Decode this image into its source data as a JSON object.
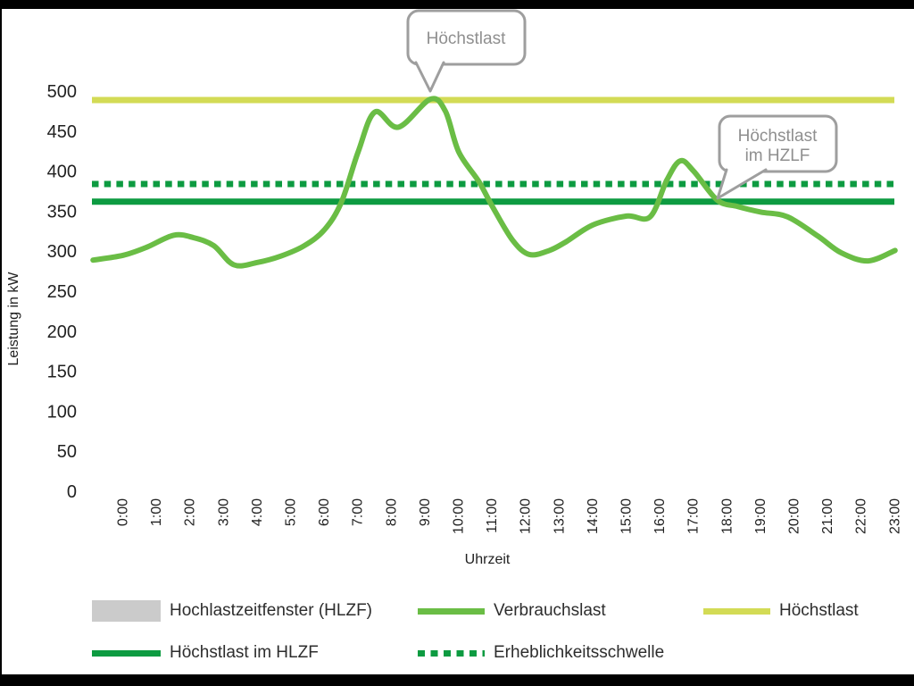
{
  "chart_data": {
    "type": "line",
    "title": "",
    "xlabel": "Uhrzeit",
    "ylabel": "Leistung in kW",
    "ylim": [
      0,
      500
    ],
    "y_ticks": [
      0,
      50,
      100,
      150,
      200,
      250,
      300,
      350,
      400,
      450,
      500
    ],
    "x_categories": [
      "0:00",
      "1:00",
      "2:00",
      "3:00",
      "4:00",
      "5:00",
      "6:00",
      "7:00",
      "8:00",
      "9:00",
      "10:00",
      "11:00",
      "12:00",
      "13:00",
      "14:00",
      "15:00",
      "16:00",
      "17:00",
      "18:00",
      "19:00",
      "20:00",
      "21:00",
      "22:00",
      "23:00"
    ],
    "grid": "off",
    "legend_position": "bottom",
    "series": [
      {
        "name": "Verbrauchslast",
        "type": "line",
        "color": "#6abd45",
        "unit": "kW",
        "hourly_values": [
          296,
          312,
          319,
          296,
          287,
          303,
          328,
          425,
          461,
          490,
          420,
          357,
          298,
          310,
          334,
          345,
          381,
          401,
          361,
          350,
          339,
          308,
          289,
          302
        ],
        "curve_points": [
          [
            -0.9,
            290
          ],
          [
            0,
            296
          ],
          [
            0.7,
            306
          ],
          [
            1.5,
            321
          ],
          [
            2.1,
            318
          ],
          [
            2.7,
            308
          ],
          [
            3.3,
            284
          ],
          [
            4,
            287
          ],
          [
            4.7,
            295
          ],
          [
            5.4,
            308
          ],
          [
            6,
            328
          ],
          [
            6.5,
            362
          ],
          [
            7,
            425
          ],
          [
            7.5,
            475
          ],
          [
            8.2,
            456
          ],
          [
            9.15,
            491
          ],
          [
            9.6,
            476
          ],
          [
            10,
            425
          ],
          [
            10.6,
            388
          ],
          [
            11,
            357
          ],
          [
            11.6,
            315
          ],
          [
            12.1,
            297
          ],
          [
            12.7,
            302
          ],
          [
            13.2,
            313
          ],
          [
            14,
            334
          ],
          [
            15,
            345
          ],
          [
            15.7,
            344
          ],
          [
            16.2,
            390
          ],
          [
            16.6,
            414
          ],
          [
            17,
            401
          ],
          [
            17.7,
            365
          ],
          [
            18.3,
            357
          ],
          [
            19,
            350
          ],
          [
            19.8,
            344
          ],
          [
            20.7,
            320
          ],
          [
            21.4,
            299
          ],
          [
            22.2,
            289
          ],
          [
            23,
            302
          ]
        ]
      },
      {
        "name": "Höchstlast",
        "type": "hline",
        "color": "#d3db55",
        "value": 490
      },
      {
        "name": "Erheblichkeitsschwelle",
        "type": "hline_dotted",
        "color": "#0d9b41",
        "value": 385
      },
      {
        "name": "Höchstlast im HLZF",
        "type": "hline",
        "color": "#0d9b41",
        "value": 363
      }
    ],
    "legend": [
      {
        "label": "Hochlastzeitfenster (HLZF)",
        "swatch": "rect",
        "color": "#cbcbcb"
      },
      {
        "label": "Verbrauchslast",
        "swatch": "line",
        "color": "#6abd45"
      },
      {
        "label": "Höchstlast",
        "swatch": "line",
        "color": "#d3db55"
      },
      {
        "label": "Höchstlast im HLZF",
        "swatch": "line",
        "color": "#0d9b41"
      },
      {
        "label": "Erheblichkeitsschwelle",
        "swatch": "dotted-line",
        "color": "#0d9b41"
      }
    ],
    "annotations": [
      {
        "lines": [
          "Höchstlast"
        ],
        "arrow_target": {
          "hour": 9.15,
          "kw": 491
        }
      },
      {
        "lines": [
          "Höchstlast",
          "im HZLF"
        ],
        "arrow_target": {
          "hour": 17.7,
          "kw": 365
        }
      }
    ]
  }
}
